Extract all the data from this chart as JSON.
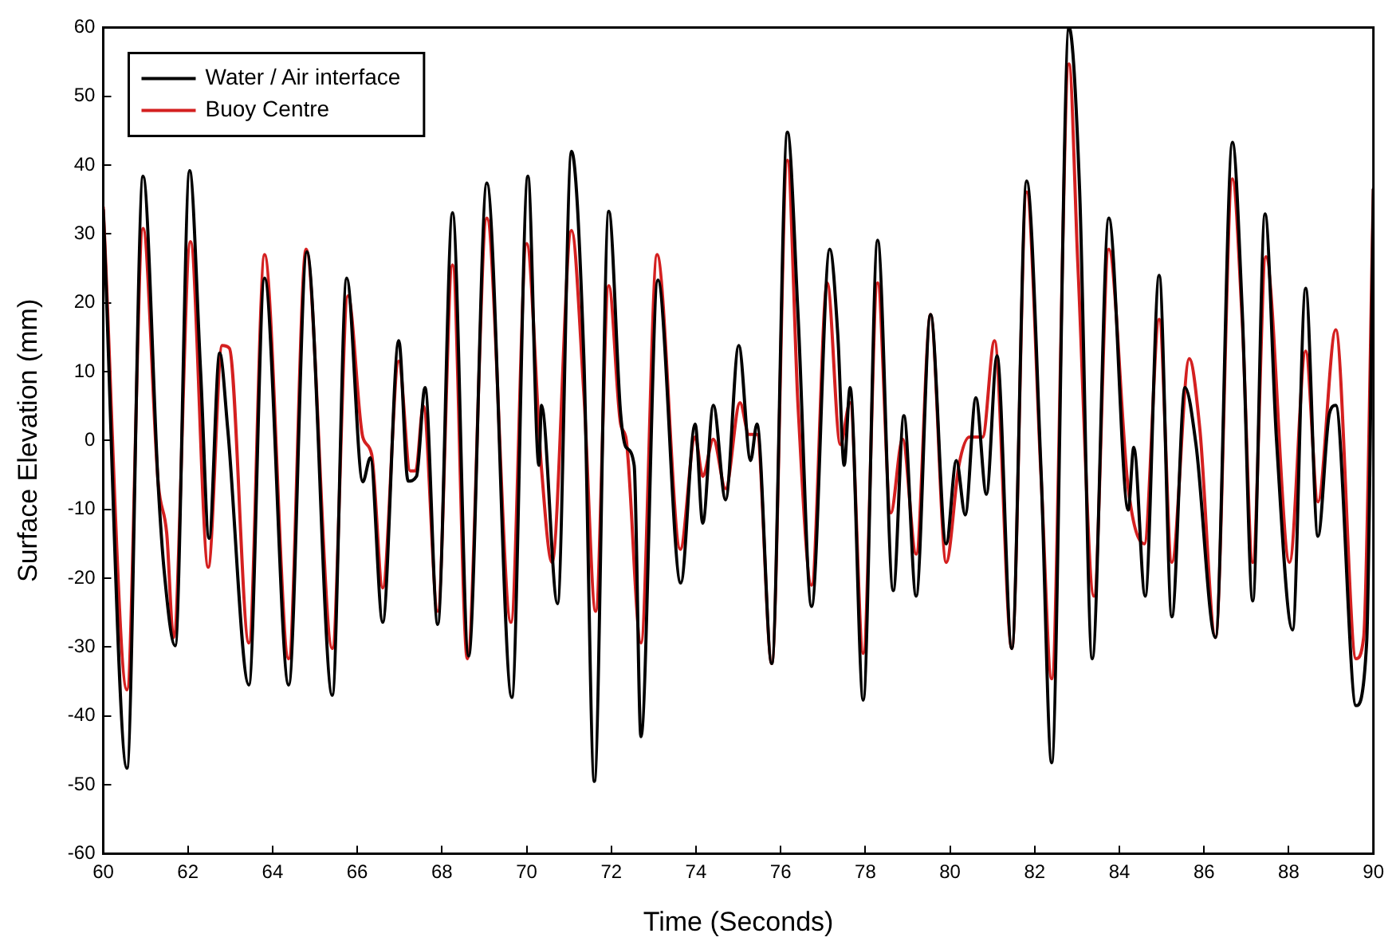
{
  "chart_data": {
    "type": "line",
    "xlabel": "Time (Seconds)",
    "ylabel": "Surface Elevation (mm)",
    "xlim": [
      60,
      90
    ],
    "xticks": [
      60,
      62,
      64,
      66,
      68,
      70,
      72,
      74,
      76,
      78,
      80,
      82,
      84,
      86,
      88,
      90
    ],
    "ylim": [
      -60,
      60
    ],
    "yticks": [
      -60,
      -50,
      -40,
      -30,
      -20,
      -10,
      0,
      10,
      20,
      30,
      40,
      50,
      60
    ],
    "grid": false,
    "legend": "top left",
    "marker": "none",
    "line_style": "solid",
    "series": [
      {
        "name": "Water / Air interface",
        "color": "#000000",
        "x": [
          60,
          60.56,
          60.94,
          61.3,
          61.44,
          61.7,
          62.04,
          62.3,
          62.5,
          62.75,
          62.94,
          63.44,
          63.81,
          64.38,
          64.81,
          65.41,
          65.75,
          66.13,
          66.31,
          66.6,
          66.98,
          67.2,
          67.4,
          67.6,
          67.9,
          68.25,
          68.63,
          69.06,
          69.65,
          70.03,
          70.29,
          70.35,
          70.73,
          71.06,
          71.35,
          71.6,
          71.94,
          72.22,
          72.35,
          72.54,
          72.7,
          73.1,
          73.64,
          73.98,
          74.16,
          74.41,
          74.7,
          75.01,
          75.29,
          75.44,
          75.79,
          76.16,
          76.41,
          76.73,
          77.16,
          77.35,
          77.5,
          77.64,
          77.95,
          78.29,
          78.66,
          78.91,
          79.2,
          79.54,
          79.91,
          80.15,
          80.36,
          80.61,
          80.86,
          81.11,
          81.46,
          81.81,
          82.15,
          82.4,
          82.81,
          83.06,
          83.36,
          83.75,
          84.21,
          84.34,
          84.61,
          84.94,
          85.24,
          85.55,
          85.81,
          86.27,
          86.67,
          86.9,
          87.15,
          87.44,
          87.71,
          88.09,
          88.4,
          88.69,
          88.96,
          89.11,
          89.59,
          89.84,
          90
        ],
        "values": [
          33.5,
          -47.6,
          38.4,
          -6.7,
          -19,
          -29.8,
          39.2,
          10,
          -14.2,
          12.7,
          1.7,
          -35.5,
          23.6,
          -35.5,
          27.4,
          -37,
          23.6,
          -6,
          -2.5,
          -26.4,
          14.5,
          -5.9,
          -5.2,
          7.7,
          -26.7,
          33.1,
          -31.3,
          37.4,
          -37.3,
          38.4,
          -3.6,
          5.1,
          -23.7,
          42,
          12.3,
          -49.5,
          33.3,
          3.9,
          -1,
          -3.6,
          -43,
          23.3,
          -20.7,
          2.4,
          -12,
          5.1,
          -8.6,
          13.8,
          -2.9,
          2.4,
          -32.4,
          44.8,
          18.3,
          -24.1,
          27.8,
          15.3,
          -3.6,
          7.7,
          -37.7,
          29.1,
          -21.8,
          3.6,
          -22.6,
          18.3,
          -15,
          -2.9,
          -10.8,
          6.2,
          -7.8,
          12.3,
          -30.2,
          37.7,
          -4.4,
          -46.8,
          60,
          36.5,
          -31.7,
          32.3,
          -10.1,
          -1,
          -22.6,
          24,
          -25.6,
          7.7,
          -0.6,
          -28.6,
          43.3,
          19.1,
          -23.3,
          32.9,
          0.2,
          -27.5,
          22.1,
          -13.9,
          3.9,
          5.1,
          -38.5,
          -29.4,
          36.5
        ]
      },
      {
        "name": "Buoy Centre",
        "color": "#d42020",
        "x": [
          60,
          60.56,
          60.94,
          61.3,
          61.5,
          61.66,
          62.06,
          62.48,
          62.81,
          62.98,
          63.44,
          63.81,
          64.38,
          64.79,
          65.41,
          65.78,
          66.13,
          66.34,
          66.6,
          66.98,
          67.25,
          67.38,
          67.56,
          67.9,
          68.25,
          68.6,
          69.06,
          69.63,
          70,
          70.35,
          70.6,
          71.06,
          71.35,
          71.63,
          71.94,
          72.22,
          72.35,
          72.7,
          73.08,
          73.63,
          73.98,
          74.16,
          74.41,
          74.7,
          75.04,
          75.25,
          75.44,
          75.79,
          76.16,
          76.41,
          76.73,
          77.1,
          77.41,
          77.64,
          77.95,
          78.29,
          78.6,
          78.88,
          79.2,
          79.54,
          79.91,
          80.21,
          80.46,
          80.77,
          81.05,
          81.46,
          81.81,
          82.15,
          82.4,
          82.81,
          83.02,
          83.4,
          83.75,
          84.21,
          84.59,
          84.94,
          85.24,
          85.65,
          85.9,
          86.27,
          86.67,
          86.9,
          87.15,
          87.46,
          88.02,
          88.4,
          88.69,
          89.11,
          89.59,
          89.77,
          90
        ],
        "values": [
          33.9,
          -36.2,
          30.8,
          -6.3,
          -13.5,
          -28.6,
          28.9,
          -18.4,
          13.8,
          13.4,
          -29.4,
          27,
          -31.7,
          27.8,
          -30.2,
          21,
          0.5,
          -2,
          -21.4,
          11.5,
          -4.4,
          -4.4,
          5,
          -24.8,
          25.5,
          -31.7,
          32.3,
          -26.4,
          28.6,
          -4,
          -17.7,
          30.5,
          7,
          -24.8,
          22.5,
          2.4,
          0.2,
          -29.4,
          27,
          -15.8,
          0.5,
          -5.2,
          0.2,
          -7,
          5.5,
          0.9,
          0.9,
          -32.4,
          40.7,
          5.1,
          -21,
          22.9,
          -0.6,
          5.5,
          -30.9,
          22.9,
          -10.5,
          0.2,
          -16.5,
          18.3,
          -17.7,
          -3.6,
          0.5,
          0.5,
          14.5,
          -30.2,
          36.1,
          -5.2,
          -34.6,
          54.7,
          25.5,
          -22.6,
          27.8,
          -7,
          -15,
          17.6,
          -17.7,
          11.9,
          1.7,
          -28.6,
          38,
          17.6,
          -17.7,
          26.7,
          -17.7,
          13,
          -8.9,
          16.1,
          -31.7,
          -28.6,
          36.5
        ]
      }
    ]
  }
}
